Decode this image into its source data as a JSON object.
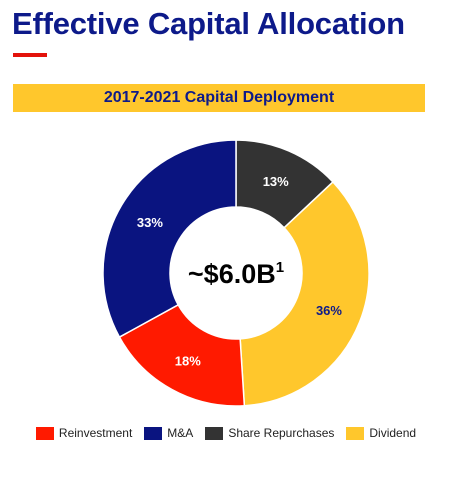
{
  "page": {
    "title": "Effective Capital Allocation",
    "accent_color": "#e3120b",
    "title_color": "#0d1a8a"
  },
  "chart_data": {
    "type": "pie",
    "title": "2017-2021 Capital Deployment",
    "center_label": "~$6.0B",
    "center_superscript": "1",
    "categories": [
      "Share Repurchases",
      "Dividend",
      "Reinvestment",
      "M&A"
    ],
    "values": [
      13,
      36,
      18,
      33
    ],
    "value_labels": [
      "13%",
      "36%",
      "18%",
      "33%"
    ],
    "colors": [
      "#333333",
      "#ffc72c",
      "#ff1a00",
      "#0a1480"
    ],
    "legend": {
      "position": "bottom",
      "items": [
        {
          "label": "Reinvestment",
          "color": "#ff1a00"
        },
        {
          "label": "M&A",
          "color": "#0a1480"
        },
        {
          "label": "Share Repurchases",
          "color": "#333333"
        },
        {
          "label": "Dividend",
          "color": "#ffc72c"
        }
      ]
    }
  }
}
